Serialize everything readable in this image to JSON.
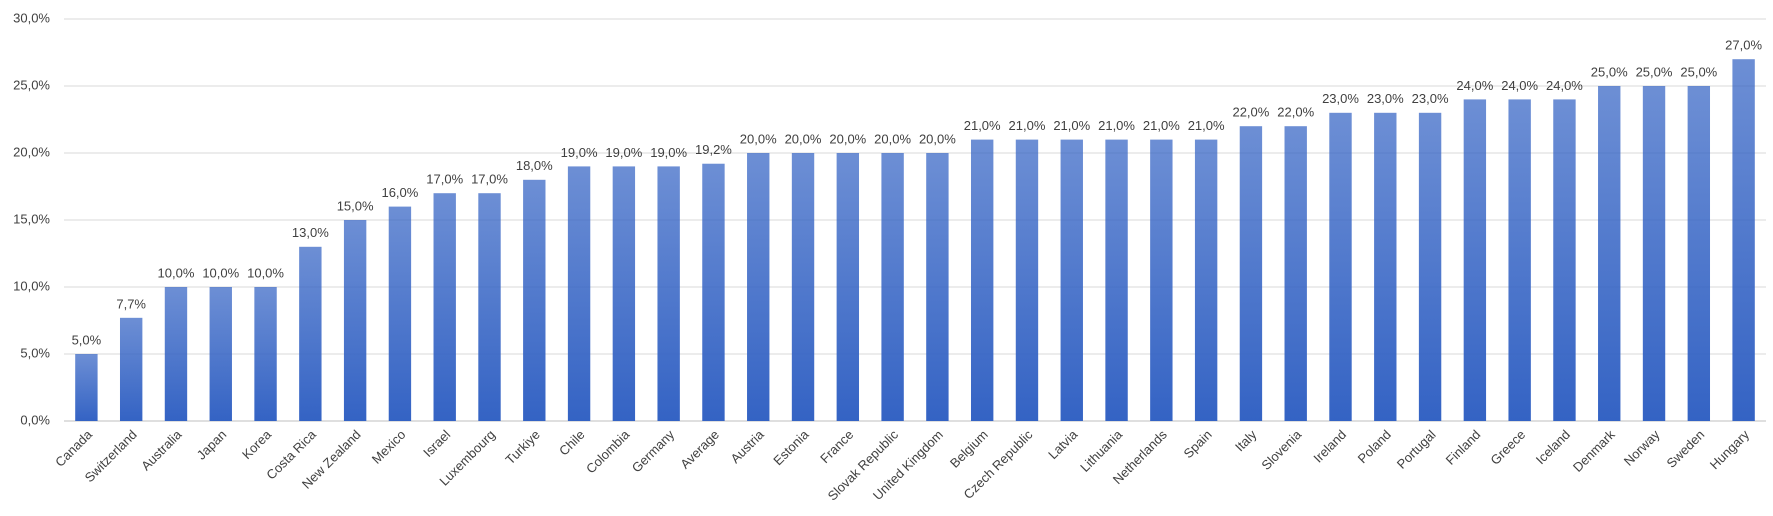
{
  "chart_data": {
    "type": "bar",
    "categories": [
      "Canada",
      "Switzerland",
      "Australia",
      "Japan",
      "Korea",
      "Costa Rica",
      "New Zealand",
      "Mexico",
      "Israel",
      "Luxembourg",
      "Turkiye",
      "Chile",
      "Colombia",
      "Germany",
      "Average",
      "Austria",
      "Estonia",
      "France",
      "Slovak Republic",
      "United Kingdom",
      "Belgium",
      "Czech Republic",
      "Latvia",
      "Lithuania",
      "Netherlands",
      "Spain",
      "Italy",
      "Slovenia",
      "Ireland",
      "Poland",
      "Portugal",
      "Finland",
      "Greece",
      "Iceland",
      "Denmark",
      "Norway",
      "Sweden",
      "Hungary"
    ],
    "values": [
      5.0,
      7.7,
      10.0,
      10.0,
      10.0,
      13.0,
      15.0,
      16.0,
      17.0,
      17.0,
      18.0,
      19.0,
      19.0,
      19.0,
      19.2,
      20.0,
      20.0,
      20.0,
      20.0,
      20.0,
      21.0,
      21.0,
      21.0,
      21.0,
      21.0,
      21.0,
      22.0,
      22.0,
      23.0,
      23.0,
      23.0,
      24.0,
      24.0,
      24.0,
      25.0,
      25.0,
      25.0,
      27.0
    ],
    "value_labels": [
      "5,0%",
      "7,7%",
      "10,0%",
      "10,0%",
      "10,0%",
      "13,0%",
      "15,0%",
      "16,0%",
      "17,0%",
      "17,0%",
      "18,0%",
      "19,0%",
      "19,0%",
      "19,0%",
      "19,2%",
      "20,0%",
      "20,0%",
      "20,0%",
      "20,0%",
      "20,0%",
      "21,0%",
      "21,0%",
      "21,0%",
      "21,0%",
      "21,0%",
      "21,0%",
      "22,0%",
      "22,0%",
      "23,0%",
      "23,0%",
      "23,0%",
      "24,0%",
      "24,0%",
      "24,0%",
      "25,0%",
      "25,0%",
      "25,0%",
      "27,0%"
    ],
    "color": "#3463c4",
    "ylim": [
      0,
      30
    ],
    "yticks": [
      {
        "value": 0,
        "label": "0,0%"
      },
      {
        "value": 5,
        "label": "5,0%"
      },
      {
        "value": 10,
        "label": "10,0%"
      },
      {
        "value": 15,
        "label": "15,0%"
      },
      {
        "value": 20,
        "label": "20,0%"
      },
      {
        "value": 25,
        "label": "25,0%"
      },
      {
        "value": 30,
        "label": "30,0%"
      }
    ],
    "grid": true
  }
}
